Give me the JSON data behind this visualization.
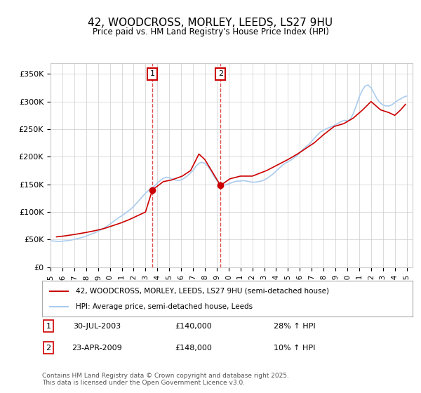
{
  "title": "42, WOODCROSS, MORLEY, LEEDS, LS27 9HU",
  "subtitle": "Price paid vs. HM Land Registry's House Price Index (HPI)",
  "ylabel_ticks": [
    "£0",
    "£50K",
    "£100K",
    "£150K",
    "£200K",
    "£250K",
    "£300K",
    "£350K"
  ],
  "ytick_values": [
    0,
    50000,
    100000,
    150000,
    200000,
    250000,
    300000,
    350000
  ],
  "ylim": [
    0,
    370000
  ],
  "xlim_start": 1995.0,
  "xlim_end": 2025.5,
  "vline1_x": 2003.58,
  "vline2_x": 2009.32,
  "sale1_label": "1",
  "sale2_label": "2",
  "sale1_date": "30-JUL-2003",
  "sale1_price": "£140,000",
  "sale1_hpi": "28% ↑ HPI",
  "sale2_date": "23-APR-2009",
  "sale2_price": "£148,000",
  "sale2_hpi": "10% ↑ HPI",
  "legend_line1": "42, WOODCROSS, MORLEY, LEEDS, LS27 9HU (semi-detached house)",
  "legend_line2": "HPI: Average price, semi-detached house, Leeds",
  "footer": "Contains HM Land Registry data © Crown copyright and database right 2025.\nThis data is licensed under the Open Government Licence v3.0.",
  "line_color_red": "#cc0000",
  "line_color_blue": "#aaccee",
  "vline_color": "#cc0000",
  "background_color": "#ffffff",
  "plot_bg_color": "#ffffff",
  "grid_color": "#cccccc",
  "xticks": [
    1995,
    1996,
    1997,
    1998,
    1999,
    2000,
    2001,
    2002,
    2003,
    2004,
    2005,
    2006,
    2007,
    2008,
    2009,
    2010,
    2011,
    2012,
    2013,
    2014,
    2015,
    2016,
    2017,
    2018,
    2019,
    2020,
    2021,
    2022,
    2023,
    2024,
    2025
  ],
  "hpi_years": [
    1995.0,
    1995.25,
    1995.5,
    1995.75,
    1996.0,
    1996.25,
    1996.5,
    1996.75,
    1997.0,
    1997.25,
    1997.5,
    1997.75,
    1998.0,
    1998.25,
    1998.5,
    1998.75,
    1999.0,
    1999.25,
    1999.5,
    1999.75,
    2000.0,
    2000.25,
    2000.5,
    2000.75,
    2001.0,
    2001.25,
    2001.5,
    2001.75,
    2002.0,
    2002.25,
    2002.5,
    2002.75,
    2003.0,
    2003.25,
    2003.5,
    2003.75,
    2004.0,
    2004.25,
    2004.5,
    2004.75,
    2005.0,
    2005.25,
    2005.5,
    2005.75,
    2006.0,
    2006.25,
    2006.5,
    2006.75,
    2007.0,
    2007.25,
    2007.5,
    2007.75,
    2008.0,
    2008.25,
    2008.5,
    2008.75,
    2009.0,
    2009.25,
    2009.5,
    2009.75,
    2010.0,
    2010.25,
    2010.5,
    2010.75,
    2011.0,
    2011.25,
    2011.5,
    2011.75,
    2012.0,
    2012.25,
    2012.5,
    2012.75,
    2013.0,
    2013.25,
    2013.5,
    2013.75,
    2014.0,
    2014.25,
    2014.5,
    2014.75,
    2015.0,
    2015.25,
    2015.5,
    2015.75,
    2016.0,
    2016.25,
    2016.5,
    2016.75,
    2017.0,
    2017.25,
    2017.5,
    2017.75,
    2018.0,
    2018.25,
    2018.5,
    2018.75,
    2019.0,
    2019.25,
    2019.5,
    2019.75,
    2020.0,
    2020.25,
    2020.5,
    2020.75,
    2021.0,
    2021.25,
    2021.5,
    2021.75,
    2022.0,
    2022.25,
    2022.5,
    2022.75,
    2023.0,
    2023.25,
    2023.5,
    2023.75,
    2024.0,
    2024.25,
    2024.5,
    2024.75,
    2025.0
  ],
  "hpi_values": [
    48000,
    47500,
    47000,
    46800,
    47200,
    47800,
    48500,
    49200,
    50500,
    51800,
    53000,
    54500,
    56500,
    58500,
    60500,
    62500,
    65000,
    68000,
    71000,
    74000,
    78000,
    82000,
    86000,
    90000,
    93000,
    97000,
    101000,
    105000,
    110000,
    116000,
    122000,
    128000,
    134000,
    139000,
    143000,
    147000,
    152000,
    157000,
    161000,
    163000,
    162000,
    160000,
    158000,
    157000,
    158000,
    161000,
    165000,
    170000,
    175000,
    183000,
    188000,
    190000,
    188000,
    183000,
    175000,
    165000,
    157000,
    152000,
    150000,
    149000,
    151000,
    153000,
    155000,
    156000,
    156000,
    157000,
    156000,
    155000,
    154000,
    154000,
    155000,
    156000,
    158000,
    161000,
    165000,
    169000,
    174000,
    179000,
    184000,
    188000,
    191000,
    194000,
    198000,
    202000,
    207000,
    213000,
    218000,
    222000,
    228000,
    234000,
    240000,
    245000,
    248000,
    251000,
    253000,
    255000,
    258000,
    261000,
    264000,
    266000,
    265000,
    268000,
    278000,
    292000,
    308000,
    320000,
    328000,
    330000,
    325000,
    315000,
    305000,
    298000,
    294000,
    292000,
    292000,
    294000,
    298000,
    302000,
    305000,
    308000,
    310000
  ],
  "price_years": [
    1995.5,
    1996.3,
    1997.2,
    1998.0,
    1998.7,
    1999.5,
    2000.2,
    2000.9,
    2001.6,
    2002.3,
    2003.0,
    2003.58,
    2004.5,
    2005.2,
    2006.1,
    2006.8,
    2007.5,
    2008.0,
    2009.32,
    2010.1,
    2011.0,
    2012.0,
    2013.2,
    2014.1,
    2015.0,
    2015.8,
    2016.5,
    2017.2,
    2018.0,
    2018.9,
    2019.7,
    2020.5,
    2021.3,
    2022.0,
    2022.8,
    2023.5,
    2024.0,
    2024.5,
    2024.9
  ],
  "price_values": [
    55000,
    57000,
    60000,
    63000,
    66000,
    70000,
    75000,
    80000,
    86000,
    93000,
    100000,
    140000,
    155000,
    158000,
    165000,
    175000,
    205000,
    195000,
    148000,
    160000,
    165000,
    165000,
    175000,
    185000,
    195000,
    205000,
    215000,
    225000,
    240000,
    255000,
    260000,
    270000,
    285000,
    300000,
    285000,
    280000,
    275000,
    285000,
    295000
  ]
}
